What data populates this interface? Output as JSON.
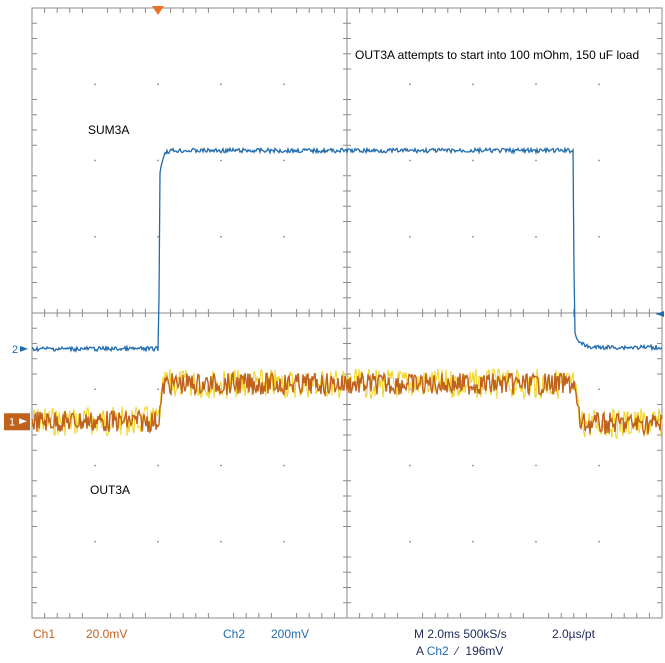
{
  "chart_data": {
    "type": "line",
    "title": "",
    "annotation": "OUT3A attempts to start into 100 mOhm, 150 uF load",
    "xlabel": "",
    "ylabel": "",
    "grid": true,
    "x_unit": "ms",
    "xlim": [
      0,
      20
    ],
    "y_unit": "div",
    "ylim": [
      -4,
      4
    ],
    "series": [
      {
        "name": "SUM3A",
        "channel": "Ch2",
        "color": "#1f6bb0",
        "x": [
          0,
          4.02,
          4.06,
          4.2,
          4.4,
          17.18,
          17.22,
          17.4,
          17.7,
          20
        ],
        "y": [
          -0.47,
          -0.47,
          1.85,
          2.1,
          2.13,
          2.13,
          -0.25,
          -0.4,
          -0.45,
          -0.45
        ]
      },
      {
        "name": "OUT3A",
        "channel": "Ch1",
        "color": "#c0621e",
        "noise_color": "#f2d21b",
        "x": [
          0,
          4.0,
          4.2,
          17.2,
          17.4,
          20
        ],
        "y": [
          -1.42,
          -1.42,
          -0.93,
          -0.93,
          -1.45,
          -1.45
        ]
      }
    ],
    "markers": {
      "ch2_ground": "2",
      "ch1_ground": "1"
    }
  },
  "status_bar": {
    "ch1_label": "Ch1",
    "ch1_scale": "20.0mV",
    "ch2_label": "Ch2",
    "ch2_scale": "200mV",
    "timebase": "M 2.0ms 500kS/s",
    "sample_interval": "2.0µs/pt",
    "trigger_prefix": "A",
    "trigger_source": "Ch2",
    "trigger_slope": "⁄",
    "trigger_level": "196mV"
  },
  "colors": {
    "grid": "#8a8a8a",
    "ch1": "#c0621e",
    "ch2": "#1f6bb0",
    "trigger": "#e8742a"
  }
}
